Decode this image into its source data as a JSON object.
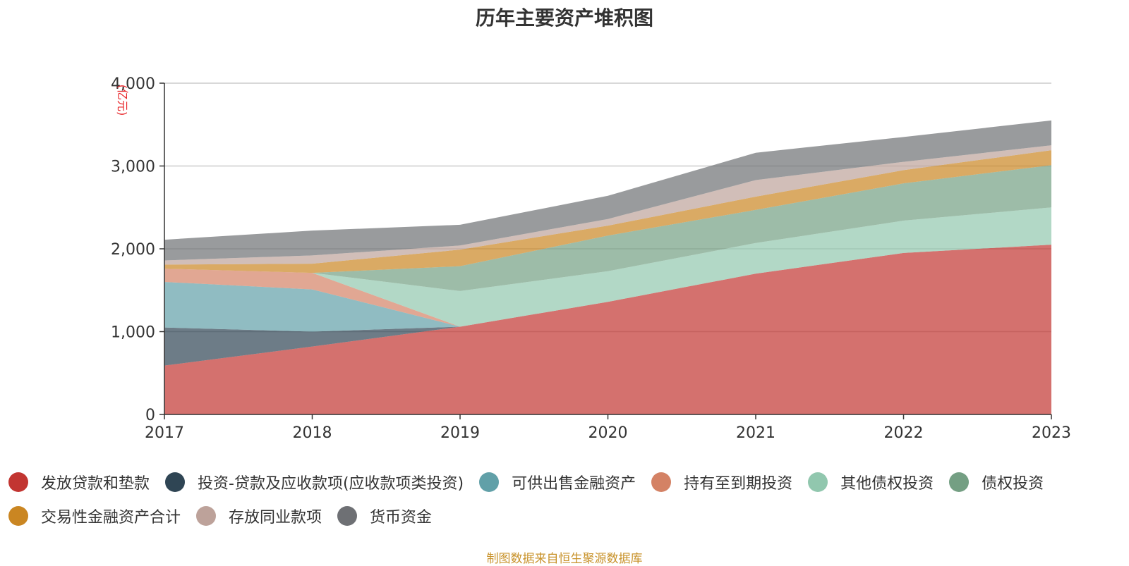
{
  "title": "历年主要资产堆积图",
  "source_note": "制图数据来自恒生聚源数据库",
  "chart_data": {
    "type": "area",
    "stacked": true,
    "unit_label": "亿元",
    "x": [
      "2017",
      "2018",
      "2019",
      "2020",
      "2021",
      "2022",
      "2023"
    ],
    "ylim": [
      0,
      4000
    ],
    "yticks": [
      0,
      1000,
      2000,
      3000,
      4000
    ],
    "ytick_labels": [
      "0",
      "1,000",
      "2,000",
      "3,000",
      "4,000"
    ],
    "grid": true,
    "legend_position": "bottom",
    "series": [
      {
        "name": "发放贷款和垫款",
        "color": "#c23531",
        "values": [
          590,
          820,
          1060,
          1360,
          1700,
          1950,
          2050
        ]
      },
      {
        "name": "投资-贷款及应收款项(应收款项类投资)",
        "color": "#2f4554",
        "values": [
          460,
          180,
          0,
          0,
          0,
          0,
          0
        ]
      },
      {
        "name": "可供出售金融资产",
        "color": "#61a0a8",
        "values": [
          550,
          510,
          0,
          0,
          0,
          0,
          0
        ]
      },
      {
        "name": "持有至到期投资",
        "color": "#d48265",
        "values": [
          160,
          200,
          0,
          0,
          0,
          0,
          0
        ]
      },
      {
        "name": "其他债权投资",
        "color": "#91c7ae",
        "values": [
          0,
          0,
          430,
          370,
          370,
          390,
          450
        ]
      },
      {
        "name": "债权投资",
        "color": "#749f83",
        "values": [
          0,
          0,
          300,
          430,
          400,
          450,
          510
        ]
      },
      {
        "name": "交易性金融资产合计",
        "color": "#ca8622",
        "values": [
          50,
          110,
          200,
          120,
          160,
          160,
          180
        ]
      },
      {
        "name": "存放同业款项",
        "color": "#bda29a",
        "values": [
          50,
          100,
          50,
          80,
          200,
          100,
          60
        ]
      },
      {
        "name": "货币资金",
        "color": "#6e7074",
        "values": [
          250,
          300,
          250,
          280,
          330,
          300,
          300
        ]
      }
    ]
  }
}
